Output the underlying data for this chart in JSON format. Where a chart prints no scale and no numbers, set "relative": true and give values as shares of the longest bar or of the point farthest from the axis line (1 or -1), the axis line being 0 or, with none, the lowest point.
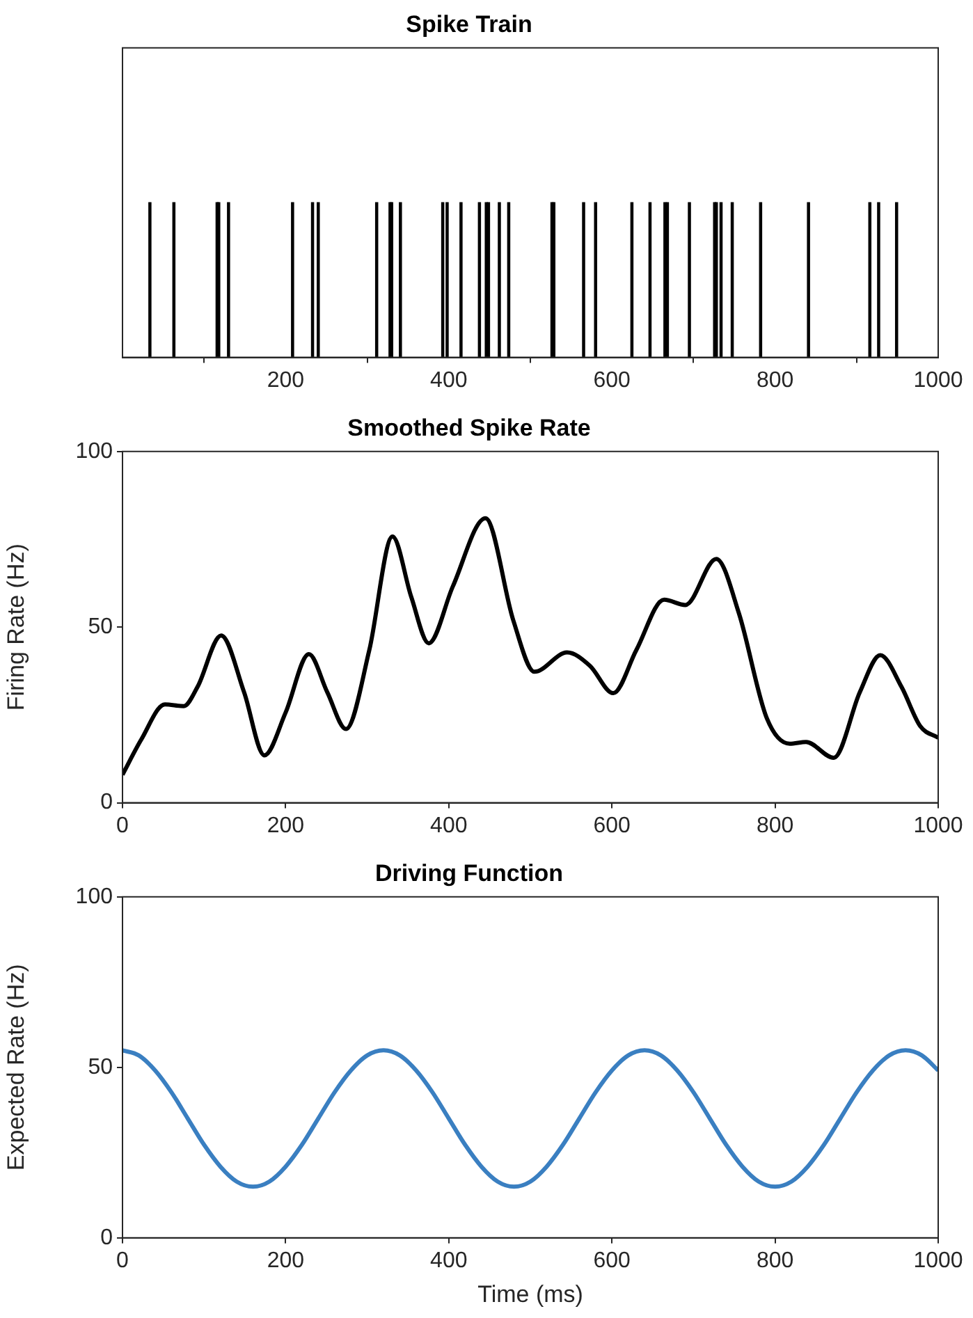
{
  "chart_data": [
    {
      "type": "bar",
      "title": "Spike Train",
      "relative": true,
      "color": "#000000",
      "xlim": [
        0,
        1000
      ],
      "xticks": [
        200,
        400,
        600,
        800,
        1000
      ],
      "tick_labels": "x",
      "grid": false,
      "legend": false,
      "x": [
        33.6,
        63,
        116,
        118,
        130,
        208.5,
        233,
        240,
        311.6,
        328,
        330,
        340.7,
        392.6,
        398,
        415,
        437.6,
        446,
        448.7,
        462,
        473.5,
        526.5,
        528.8,
        565.3,
        580,
        624.5,
        646.7,
        665,
        668,
        695,
        725.9,
        728,
        733.8,
        747.5,
        782.3,
        841,
        916.2,
        927,
        949
      ],
      "values": [
        1,
        1,
        1,
        1,
        1,
        1,
        1,
        1,
        1,
        1,
        1,
        1,
        1,
        1,
        1,
        1,
        1,
        1,
        1,
        1,
        1,
        1,
        1,
        1,
        1,
        1,
        1,
        1,
        1,
        1,
        1,
        1,
        1,
        1,
        1,
        1,
        1,
        1
      ]
    },
    {
      "type": "line",
      "title": "Smoothed Spike Rate",
      "ylabel": "Firing Rate (Hz)",
      "color": "#000000",
      "xlim": [
        0,
        1000
      ],
      "xticks": [
        0,
        200,
        400,
        600,
        800,
        1000
      ],
      "ylim": [
        0,
        100
      ],
      "yticks": [
        0,
        50,
        100
      ],
      "grid": false,
      "legend": false,
      "x": [
        0,
        23,
        52,
        75,
        92,
        121,
        149,
        174,
        200,
        228.5,
        251,
        274,
        302.6,
        331,
        354,
        375.5,
        405,
        445,
        479,
        505,
        545,
        573,
        601.7,
        630,
        664,
        690,
        728,
        755.6,
        790,
        818,
        838,
        872,
        904,
        929,
        955,
        978,
        1000
      ],
      "values": [
        8,
        18,
        28,
        27.5,
        33,
        47.6,
        31.5,
        13.5,
        25.7,
        42.3,
        31.5,
        21,
        43.5,
        75.8,
        58.6,
        45.4,
        61.6,
        81,
        52,
        37.3,
        42.8,
        39,
        31.2,
        43.5,
        57.8,
        56.3,
        69.4,
        54,
        24,
        16.8,
        17.3,
        12.8,
        31.5,
        42,
        33,
        21.8,
        18.5
      ]
    },
    {
      "type": "line",
      "title": "Driving Function",
      "ylabel": "Expected Rate (Hz)",
      "xlabel": "Time (ms)",
      "color": "#3a7fc1",
      "xlim": [
        0,
        1000
      ],
      "xticks": [
        0,
        200,
        400,
        600,
        800,
        1000
      ],
      "ylim": [
        0,
        100
      ],
      "yticks": [
        0,
        50,
        100
      ],
      "grid": false,
      "legend": false,
      "x": [
        0,
        20,
        40,
        60,
        80,
        100,
        120,
        140,
        160,
        180,
        200,
        220,
        240,
        260,
        280,
        300,
        320,
        340,
        360,
        380,
        400,
        420,
        440,
        460,
        480,
        500,
        520,
        540,
        560,
        580,
        600,
        620,
        640,
        660,
        680,
        700,
        720,
        740,
        760,
        780,
        800,
        820,
        840,
        860,
        880,
        900,
        920,
        940,
        960,
        980,
        1000
      ],
      "values": [
        55,
        53.5,
        49.1,
        42.7,
        35,
        27.3,
        20.9,
        16.5,
        15,
        16.5,
        20.9,
        27.3,
        35,
        42.7,
        49.1,
        53.5,
        55,
        53.5,
        49.1,
        42.7,
        35,
        27.3,
        20.9,
        16.5,
        15,
        16.5,
        20.9,
        27.3,
        35,
        42.7,
        49.1,
        53.5,
        55,
        53.5,
        49.1,
        42.7,
        35,
        27.3,
        20.9,
        16.5,
        15,
        16.5,
        20.9,
        27.3,
        35,
        42.7,
        49.1,
        53.5,
        55,
        53.5,
        49.1
      ]
    }
  ]
}
